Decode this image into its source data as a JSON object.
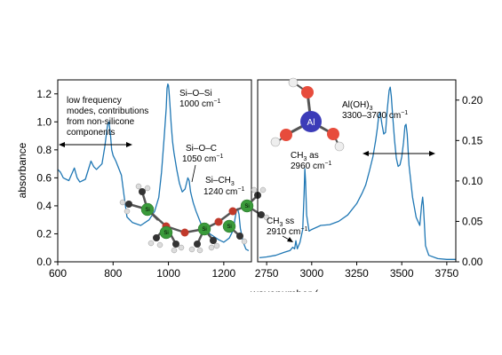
{
  "chart_data": [
    {
      "panel": "left",
      "type": "line",
      "ylabel": "absorbance",
      "xlim": [
        600,
        1300
      ],
      "ylim": [
        0,
        1.3
      ],
      "xticks": [
        "600",
        "800",
        "1000",
        "1200"
      ],
      "yticks": [
        "0.0",
        "0.2",
        "0.4",
        "0.6",
        "0.8",
        "1.0",
        "1.2"
      ],
      "series": [
        {
          "color": "#1f77b4",
          "x": [
            600,
            610,
            620,
            640,
            660,
            670,
            680,
            700,
            720,
            730,
            740,
            760,
            770,
            780,
            785,
            790,
            795,
            800,
            810,
            830,
            840,
            850,
            870,
            900,
            930,
            950,
            965,
            975,
            985,
            992,
            995,
            998,
            1000,
            1002,
            1005,
            1010,
            1015,
            1020,
            1030,
            1040,
            1050,
            1060,
            1070,
            1075,
            1080,
            1085,
            1090,
            1100,
            1120,
            1150,
            1180,
            1200,
            1220,
            1235,
            1240,
            1245,
            1250,
            1255,
            1260,
            1270,
            1280,
            1290
          ],
          "y": [
            0.66,
            0.64,
            0.6,
            0.58,
            0.67,
            0.6,
            0.57,
            0.59,
            0.72,
            0.68,
            0.66,
            0.7,
            0.82,
            0.98,
            1.0,
            0.92,
            0.8,
            0.76,
            0.72,
            0.62,
            0.47,
            0.32,
            0.28,
            0.26,
            0.3,
            0.36,
            0.46,
            0.64,
            0.9,
            1.1,
            1.24,
            1.27,
            1.26,
            1.22,
            1.14,
            0.98,
            0.86,
            0.78,
            0.66,
            0.56,
            0.5,
            0.52,
            0.6,
            0.58,
            0.5,
            0.46,
            0.42,
            0.36,
            0.26,
            0.2,
            0.16,
            0.14,
            0.17,
            0.23,
            0.3,
            0.36,
            0.38,
            0.34,
            0.24,
            0.14,
            0.09,
            0.08
          ]
        }
      ],
      "annotations": {
        "low_freq": [
          "low frequency",
          "modes, contributions",
          "from non-silicone",
          "components"
        ],
        "sioSi": "Si–O–Si",
        "sioSi_wn": "1000 cm",
        "sioC": "Si–O–C",
        "sioC_wn": "1050 cm",
        "siCH3": "Si–CH",
        "siCH3_wn": "1240 cm"
      }
    },
    {
      "panel": "right",
      "type": "line",
      "xlim": [
        2700,
        3800
      ],
      "ylim": [
        0,
        0.225
      ],
      "xticks": [
        "2750",
        "3000",
        "3250",
        "3500",
        "3750"
      ],
      "yticks": [
        "0.00",
        "0.05",
        "0.10",
        "0.15",
        "0.20"
      ],
      "series": [
        {
          "color": "#1f77b4",
          "x": [
            2710,
            2750,
            2800,
            2850,
            2880,
            2895,
            2905,
            2912,
            2920,
            2935,
            2950,
            2958,
            2962,
            2966,
            2972,
            2985,
            3000,
            3050,
            3100,
            3150,
            3200,
            3250,
            3280,
            3300,
            3320,
            3340,
            3355,
            3365,
            3372,
            3380,
            3390,
            3400,
            3410,
            3420,
            3430,
            3436,
            3442,
            3450,
            3460,
            3470,
            3480,
            3490,
            3500,
            3510,
            3518,
            3524,
            3530,
            3540,
            3560,
            3580,
            3600,
            3610,
            3616,
            3620,
            3625,
            3632,
            3650,
            3700,
            3750,
            3800
          ],
          "y": [
            0.005,
            0.006,
            0.008,
            0.012,
            0.014,
            0.018,
            0.016,
            0.026,
            0.016,
            0.024,
            0.04,
            0.085,
            0.115,
            0.1,
            0.058,
            0.038,
            0.04,
            0.045,
            0.046,
            0.05,
            0.058,
            0.072,
            0.085,
            0.095,
            0.112,
            0.13,
            0.15,
            0.166,
            0.18,
            0.185,
            0.17,
            0.158,
            0.16,
            0.19,
            0.212,
            0.216,
            0.205,
            0.18,
            0.15,
            0.128,
            0.118,
            0.12,
            0.13,
            0.148,
            0.168,
            0.17,
            0.158,
            0.12,
            0.08,
            0.055,
            0.045,
            0.07,
            0.08,
            0.07,
            0.05,
            0.02,
            0.008,
            0.004,
            0.003,
            0.003
          ]
        }
      ],
      "annotations": {
        "aloh": "Al(OH)",
        "aloh_range": "3300–3700 cm",
        "ch3as": "CH",
        "ch3as_rest": " as",
        "ch3as_wn": "2960 cm",
        "ch3ss": "CH",
        "ch3ss_rest": " ss",
        "ch3ss_wn": "2910 cm"
      }
    }
  ],
  "molecules": {
    "siloxane_atom": "Si",
    "aluminum_atom": "Al"
  },
  "cut_xlabel": "wavenumber (cm"
}
